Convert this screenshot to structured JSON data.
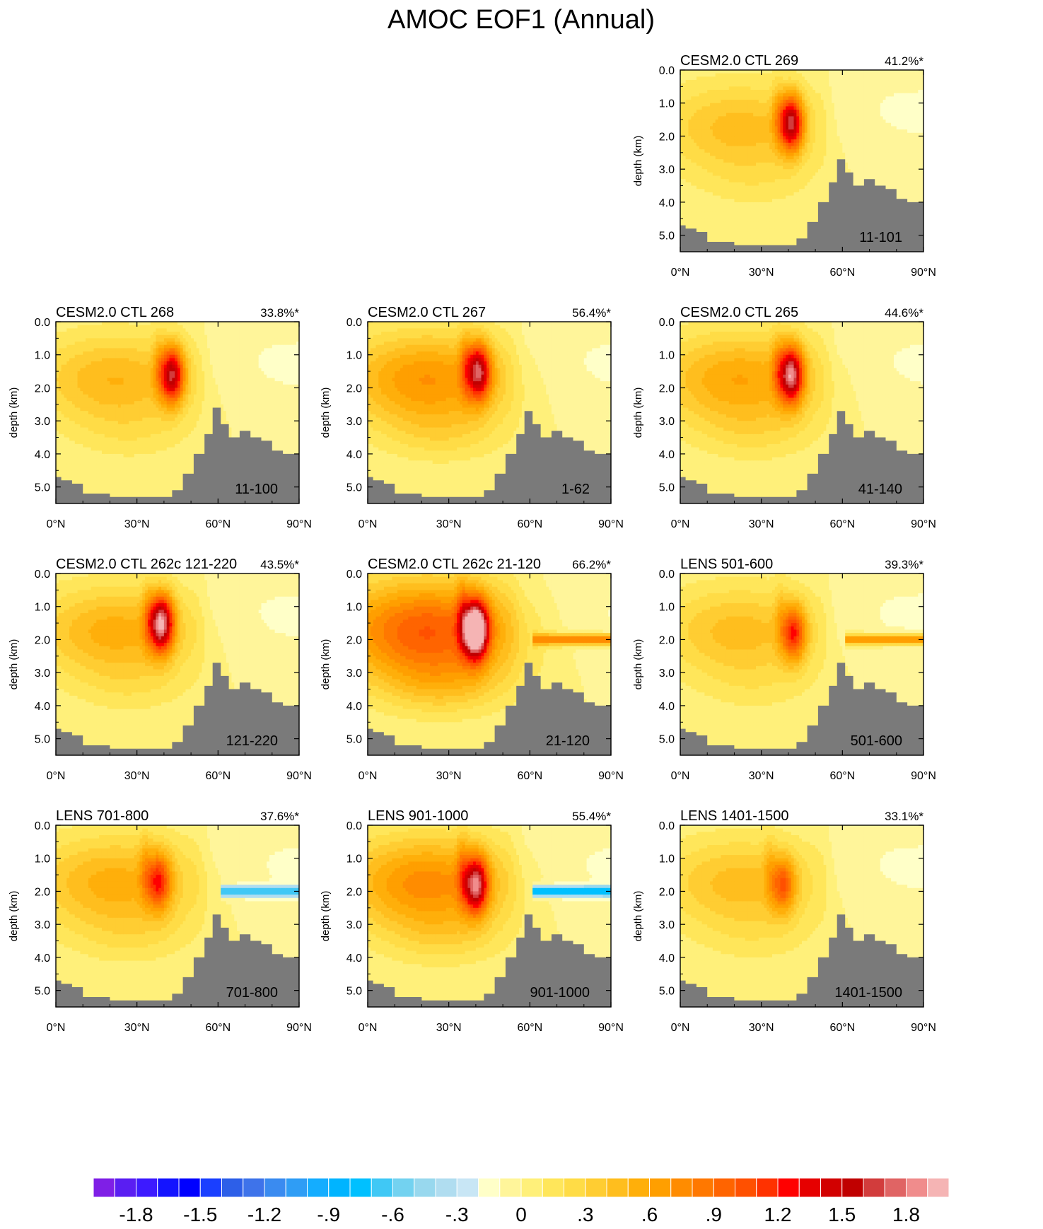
{
  "figure": {
    "title": "AMOC EOF1 (Annual)"
  },
  "chart_data": {
    "type": "contour",
    "title": "AMOC EOF1 (Annual)",
    "xlabel": "",
    "ylabel": "depth (km)",
    "xlim": [
      0,
      90
    ],
    "ylim": [
      5.5,
      0.0
    ],
    "x_ticks": [
      {
        "value": 0,
        "label": "0°N"
      },
      {
        "value": 30,
        "label": "30°N"
      },
      {
        "value": 60,
        "label": "60°N"
      },
      {
        "value": 90,
        "label": "90°N"
      }
    ],
    "y_ticks": [
      {
        "value": 0.0,
        "label": "0.0"
      },
      {
        "value": 1.0,
        "label": "1.0"
      },
      {
        "value": 2.0,
        "label": "2.0"
      },
      {
        "value": 3.0,
        "label": "3.0"
      },
      {
        "value": 4.0,
        "label": "4.0"
      },
      {
        "value": 5.0,
        "label": "5.0"
      }
    ],
    "colorbar": {
      "min": -2.0,
      "max": 2.0,
      "step": 0.1,
      "tick_labels": [
        {
          "value": -1.8,
          "label": "-1.8"
        },
        {
          "value": -1.5,
          "label": "-1.5"
        },
        {
          "value": -1.2,
          "label": "-1.2"
        },
        {
          "value": -0.9,
          "label": "-.9"
        },
        {
          "value": -0.6,
          "label": "-.6"
        },
        {
          "value": -0.3,
          "label": "-.3"
        },
        {
          "value": 0.0,
          "label": "0"
        },
        {
          "value": 0.3,
          "label": ".3"
        },
        {
          "value": 0.6,
          "label": ".6"
        },
        {
          "value": 0.9,
          "label": ".9"
        },
        {
          "value": 1.2,
          "label": "1.2"
        },
        {
          "value": 1.5,
          "label": "1.5"
        },
        {
          "value": 1.8,
          "label": "1.8"
        }
      ],
      "colors": [
        "#7f1fe6",
        "#5a1ef2",
        "#3d1aff",
        "#1414ff",
        "#0000ff",
        "#1a3fff",
        "#2d5fe8",
        "#3e73ea",
        "#3a8bf0",
        "#2f9df5",
        "#14adff",
        "#00b4ff",
        "#00c0ff",
        "#40c8f5",
        "#73d2f0",
        "#98d8ee",
        "#b0ddf0",
        "#c8e6f5",
        "#ffffc8",
        "#fff59a",
        "#fff07a",
        "#ffe65a",
        "#ffdc46",
        "#ffcd32",
        "#ffbe1e",
        "#ffaf0a",
        "#ff9f00",
        "#ff8c00",
        "#ff7800",
        "#ff6400",
        "#ff5000",
        "#ff3200",
        "#ff0000",
        "#e60000",
        "#d20000",
        "#c00000",
        "#d23c3c",
        "#e06464",
        "#f08c8c",
        "#f5b4b4"
      ]
    },
    "panels": [
      {
        "id": "p269",
        "title": "CESM2.0 CTL 269",
        "variance": "41.2%*",
        "years": "11-101",
        "core_lat": 41,
        "core_depth": 1.6,
        "peak": 1.4,
        "base": 0.45,
        "spread": 1.0,
        "band_depth": null,
        "band_value": 0,
        "bathymetry": [
          [
            0,
            4.7
          ],
          [
            2,
            4.8
          ],
          [
            6,
            4.9
          ],
          [
            10,
            5.2
          ],
          [
            20,
            5.3
          ],
          [
            30,
            5.3
          ],
          [
            38,
            5.3
          ],
          [
            43,
            5.1
          ],
          [
            47,
            4.6
          ],
          [
            51,
            4.0
          ],
          [
            55,
            3.4
          ],
          [
            58,
            2.7
          ],
          [
            61,
            3.1
          ],
          [
            64,
            3.5
          ],
          [
            68,
            3.3
          ],
          [
            72,
            3.5
          ],
          [
            76,
            3.6
          ],
          [
            80,
            3.9
          ],
          [
            84,
            4.0
          ],
          [
            90,
            4.0
          ]
        ]
      },
      {
        "id": "p268",
        "title": "CESM2.0 CTL 268",
        "variance": "33.8%*",
        "years": "11-100",
        "core_lat": 43,
        "core_depth": 1.6,
        "peak": 1.35,
        "base": 0.5,
        "spread": 1.0,
        "band_depth": null,
        "band_value": 0,
        "bathymetry": [
          [
            0,
            4.7
          ],
          [
            2,
            4.8
          ],
          [
            6,
            4.9
          ],
          [
            10,
            5.2
          ],
          [
            20,
            5.3
          ],
          [
            30,
            5.3
          ],
          [
            38,
            5.3
          ],
          [
            43,
            5.1
          ],
          [
            47,
            4.6
          ],
          [
            51,
            4.0
          ],
          [
            55,
            3.4
          ],
          [
            58,
            2.6
          ],
          [
            61,
            3.1
          ],
          [
            64,
            3.5
          ],
          [
            68,
            3.3
          ],
          [
            72,
            3.5
          ],
          [
            76,
            3.6
          ],
          [
            80,
            3.9
          ],
          [
            84,
            4.0
          ],
          [
            90,
            4.0
          ]
        ]
      },
      {
        "id": "p267",
        "title": "CESM2.0 CTL 267",
        "variance": "56.4%*",
        "years": "1-62",
        "core_lat": 41,
        "core_depth": 1.5,
        "peak": 1.3,
        "base": 0.7,
        "spread": 1.05,
        "band_depth": null,
        "band_value": 0,
        "bathymetry": [
          [
            0,
            4.7
          ],
          [
            2,
            4.8
          ],
          [
            6,
            4.9
          ],
          [
            10,
            5.2
          ],
          [
            20,
            5.3
          ],
          [
            30,
            5.3
          ],
          [
            38,
            5.3
          ],
          [
            43,
            5.1
          ],
          [
            47,
            4.6
          ],
          [
            51,
            4.0
          ],
          [
            55,
            3.4
          ],
          [
            58,
            2.7
          ],
          [
            61,
            3.1
          ],
          [
            64,
            3.5
          ],
          [
            68,
            3.3
          ],
          [
            72,
            3.5
          ],
          [
            76,
            3.6
          ],
          [
            80,
            3.9
          ],
          [
            84,
            4.0
          ],
          [
            90,
            4.0
          ]
        ]
      },
      {
        "id": "p265",
        "title": "CESM2.0 CTL 265",
        "variance": "44.6%*",
        "years": "41-140",
        "core_lat": 41,
        "core_depth": 1.6,
        "peak": 1.5,
        "base": 0.6,
        "spread": 1.05,
        "band_depth": null,
        "band_value": 0,
        "bathymetry": [
          [
            0,
            4.7
          ],
          [
            2,
            4.8
          ],
          [
            6,
            4.9
          ],
          [
            10,
            5.2
          ],
          [
            20,
            5.3
          ],
          [
            30,
            5.3
          ],
          [
            38,
            5.3
          ],
          [
            43,
            5.1
          ],
          [
            47,
            4.6
          ],
          [
            51,
            4.0
          ],
          [
            55,
            3.4
          ],
          [
            58,
            2.7
          ],
          [
            61,
            3.1
          ],
          [
            64,
            3.5
          ],
          [
            68,
            3.3
          ],
          [
            72,
            3.5
          ],
          [
            76,
            3.6
          ],
          [
            80,
            3.9
          ],
          [
            84,
            4.0
          ],
          [
            90,
            4.0
          ]
        ]
      },
      {
        "id": "p262a",
        "title": "CESM2.0 CTL 262c 121-220",
        "variance": "43.5%*",
        "years": "121-220",
        "core_lat": 39,
        "core_depth": 1.5,
        "peak": 1.6,
        "base": 0.55,
        "spread": 1.0,
        "band_depth": null,
        "band_value": 0,
        "bathymetry": [
          [
            0,
            4.7
          ],
          [
            2,
            4.8
          ],
          [
            6,
            4.9
          ],
          [
            10,
            5.2
          ],
          [
            20,
            5.3
          ],
          [
            30,
            5.3
          ],
          [
            38,
            5.3
          ],
          [
            43,
            5.1
          ],
          [
            47,
            4.6
          ],
          [
            51,
            4.0
          ],
          [
            55,
            3.4
          ],
          [
            58,
            2.7
          ],
          [
            61,
            3.1
          ],
          [
            64,
            3.5
          ],
          [
            68,
            3.3
          ],
          [
            72,
            3.5
          ],
          [
            76,
            3.6
          ],
          [
            80,
            3.9
          ],
          [
            84,
            4.0
          ],
          [
            90,
            4.0
          ]
        ]
      },
      {
        "id": "p262b",
        "title": "CESM2.0 CTL 262c 21-120",
        "variance": "66.2%*",
        "years": "21-120",
        "core_lat": 40,
        "core_depth": 1.7,
        "peak": 1.95,
        "base": 1.0,
        "spread": 1.15,
        "band_depth": 2.0,
        "band_value": 0.85,
        "bathymetry": [
          [
            0,
            4.7
          ],
          [
            2,
            4.8
          ],
          [
            6,
            4.9
          ],
          [
            10,
            5.2
          ],
          [
            20,
            5.3
          ],
          [
            30,
            5.3
          ],
          [
            38,
            5.3
          ],
          [
            43,
            5.1
          ],
          [
            47,
            4.6
          ],
          [
            51,
            4.0
          ],
          [
            55,
            3.4
          ],
          [
            58,
            2.7
          ],
          [
            61,
            3.1
          ],
          [
            64,
            3.5
          ],
          [
            68,
            3.3
          ],
          [
            72,
            3.5
          ],
          [
            76,
            3.6
          ],
          [
            80,
            3.9
          ],
          [
            84,
            4.0
          ],
          [
            90,
            4.0
          ]
        ]
      },
      {
        "id": "lens501",
        "title": "LENS 501-600",
        "variance": "39.3%*",
        "years": "501-600",
        "core_lat": 42,
        "core_depth": 1.8,
        "peak": 0.95,
        "base": 0.45,
        "spread": 1.0,
        "band_depth": 2.0,
        "band_value": 0.7,
        "bathymetry": [
          [
            0,
            4.7
          ],
          [
            2,
            4.8
          ],
          [
            6,
            4.9
          ],
          [
            10,
            5.2
          ],
          [
            20,
            5.3
          ],
          [
            30,
            5.3
          ],
          [
            38,
            5.3
          ],
          [
            43,
            5.1
          ],
          [
            47,
            4.6
          ],
          [
            51,
            4.0
          ],
          [
            55,
            3.4
          ],
          [
            58,
            2.7
          ],
          [
            61,
            3.1
          ],
          [
            64,
            3.5
          ],
          [
            68,
            3.3
          ],
          [
            72,
            3.5
          ],
          [
            76,
            3.6
          ],
          [
            80,
            3.9
          ],
          [
            84,
            4.0
          ],
          [
            90,
            4.0
          ]
        ]
      },
      {
        "id": "lens701",
        "title": "LENS 701-800",
        "variance": "37.6%*",
        "years": "701-800",
        "core_lat": 38,
        "core_depth": 1.7,
        "peak": 0.85,
        "base": 0.55,
        "spread": 1.05,
        "band_depth": 2.0,
        "band_value": -0.75,
        "bathymetry": [
          [
            0,
            4.7
          ],
          [
            2,
            4.8
          ],
          [
            6,
            4.9
          ],
          [
            10,
            5.2
          ],
          [
            20,
            5.3
          ],
          [
            30,
            5.3
          ],
          [
            38,
            5.3
          ],
          [
            43,
            5.1
          ],
          [
            47,
            4.6
          ],
          [
            51,
            4.0
          ],
          [
            55,
            3.4
          ],
          [
            58,
            2.7
          ],
          [
            61,
            3.1
          ],
          [
            64,
            3.5
          ],
          [
            68,
            3.3
          ],
          [
            72,
            3.5
          ],
          [
            76,
            3.6
          ],
          [
            80,
            3.9
          ],
          [
            84,
            4.0
          ],
          [
            90,
            4.0
          ]
        ]
      },
      {
        "id": "lens901",
        "title": "LENS 901-1000",
        "variance": "55.4%*",
        "years": "901-1000",
        "core_lat": 40,
        "core_depth": 1.8,
        "peak": 1.35,
        "base": 0.75,
        "spread": 1.05,
        "band_depth": 2.0,
        "band_value": -0.85,
        "bathymetry": [
          [
            0,
            4.7
          ],
          [
            2,
            4.8
          ],
          [
            6,
            4.9
          ],
          [
            10,
            5.2
          ],
          [
            20,
            5.3
          ],
          [
            30,
            5.3
          ],
          [
            38,
            5.3
          ],
          [
            43,
            5.1
          ],
          [
            47,
            4.6
          ],
          [
            51,
            4.0
          ],
          [
            55,
            3.4
          ],
          [
            58,
            2.7
          ],
          [
            61,
            3.1
          ],
          [
            64,
            3.5
          ],
          [
            68,
            3.3
          ],
          [
            72,
            3.5
          ],
          [
            76,
            3.6
          ],
          [
            80,
            3.9
          ],
          [
            84,
            4.0
          ],
          [
            90,
            4.0
          ]
        ]
      },
      {
        "id": "lens1401",
        "title": "LENS 1401-1500",
        "variance": "33.1%*",
        "years": "1401-1500",
        "core_lat": 38,
        "core_depth": 1.8,
        "peak": 0.7,
        "base": 0.45,
        "spread": 1.0,
        "band_depth": null,
        "band_value": 0,
        "bathymetry": [
          [
            0,
            4.7
          ],
          [
            2,
            4.8
          ],
          [
            6,
            4.9
          ],
          [
            10,
            5.2
          ],
          [
            20,
            5.3
          ],
          [
            30,
            5.3
          ],
          [
            38,
            5.3
          ],
          [
            43,
            5.1
          ],
          [
            47,
            4.6
          ],
          [
            51,
            4.0
          ],
          [
            55,
            3.4
          ],
          [
            58,
            2.7
          ],
          [
            61,
            3.1
          ],
          [
            64,
            3.5
          ],
          [
            68,
            3.3
          ],
          [
            72,
            3.5
          ],
          [
            76,
            3.6
          ],
          [
            80,
            3.9
          ],
          [
            84,
            4.0
          ],
          [
            90,
            4.0
          ]
        ]
      }
    ]
  }
}
